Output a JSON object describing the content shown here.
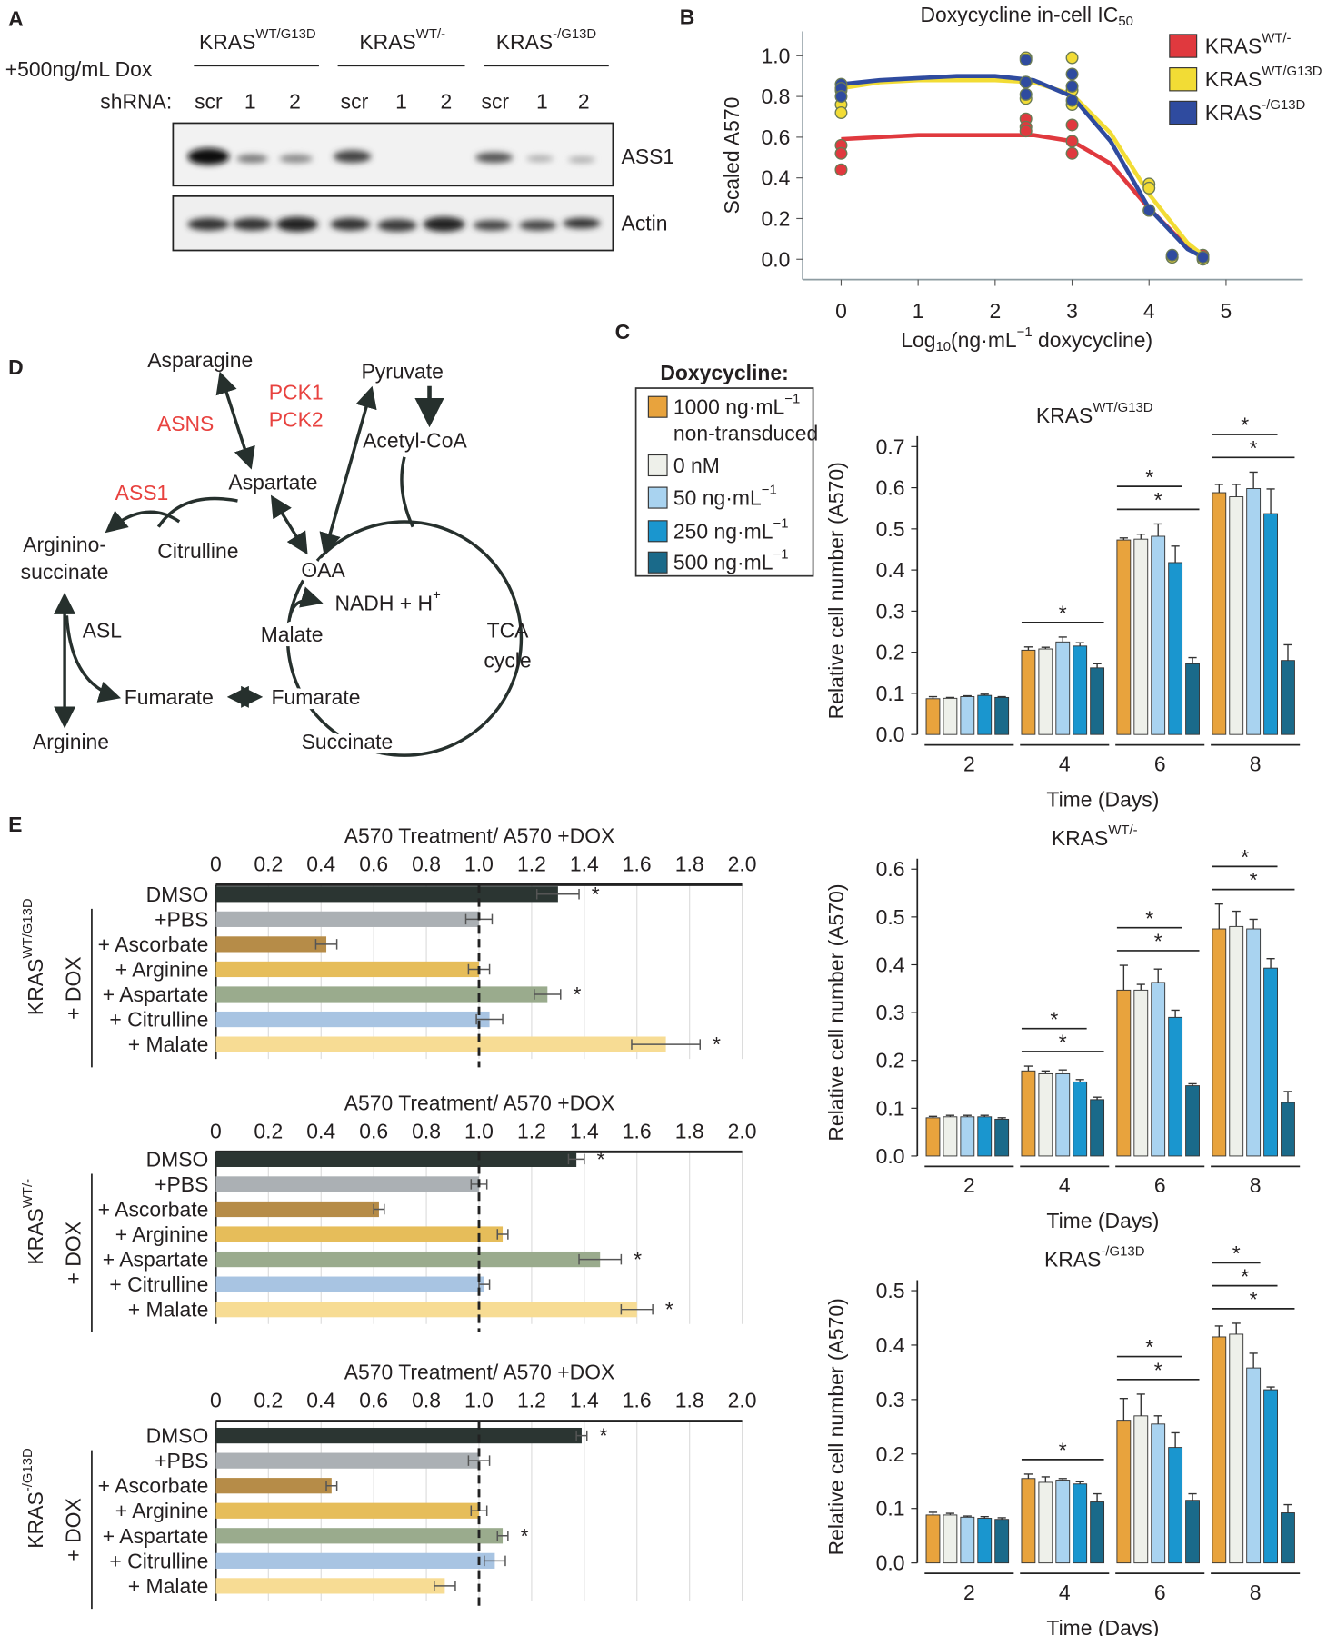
{
  "panel_labels": [
    "A",
    "B",
    "C",
    "D",
    "E"
  ],
  "blot": {
    "treatment": "+500ng/mL Dox",
    "shrna_label": "shRNA:",
    "groups": [
      {
        "name": [
          {
            "t": "KRAS"
          },
          {
            "t": "WT/G13D",
            "pos": "sup"
          }
        ],
        "lanes": [
          "scr",
          "1",
          "2"
        ]
      },
      {
        "name": [
          {
            "t": "KRAS"
          },
          {
            "t": "WT/-",
            "pos": "sup"
          }
        ],
        "lanes": [
          "scr",
          "1",
          "2"
        ]
      },
      {
        "name": [
          {
            "t": "KRAS"
          },
          {
            "t": "-/G13D",
            "pos": "sup"
          }
        ],
        "lanes": [
          "scr",
          "1",
          "2"
        ]
      }
    ],
    "rows": [
      "ASS1",
      "Actin"
    ]
  },
  "pathway": {
    "nodes": [
      {
        "label": "Asparagine"
      },
      {
        "label": "Pyruvate"
      },
      {
        "label": "PCK1",
        "color": "#e8423f"
      },
      {
        "label": "PCK2",
        "color": "#e8423f"
      },
      {
        "label": "ASNS",
        "color": "#e8423f"
      },
      {
        "label": "Acetyl-CoA"
      },
      {
        "label": "Aspartate"
      },
      {
        "label": "ASS1",
        "color": "#e8423f"
      },
      {
        "label": "Citrulline"
      },
      {
        "label": {
          "lines": [
            "Arginino-",
            "succinate"
          ]
        }
      },
      {
        "label": "OAA"
      },
      {
        "label": [
          {
            "t": "NADH + H"
          },
          {
            "t": "+",
            "pos": "sup"
          }
        ]
      },
      {
        "label": "Malate"
      },
      {
        "label": {
          "lines": [
            "TCA",
            "cycle"
          ]
        }
      },
      {
        "label": "ASL"
      },
      {
        "label": "Fumarate"
      },
      {
        "label": "Fumarate"
      },
      {
        "label": "Arginine"
      },
      {
        "label": "Succinate"
      }
    ]
  },
  "chart_data": [
    {
      "type": "scatter",
      "title": [
        {
          "t": "Doxycycline in-cell IC"
        },
        {
          "t": "50",
          "pos": "sub"
        }
      ],
      "xlabel": [
        {
          "t": "Log"
        },
        {
          "t": "10",
          "pos": "sub"
        },
        {
          "t": "(ng·mL"
        },
        {
          "t": "−1",
          "pos": "sup"
        },
        {
          "t": " doxycycline)"
        }
      ],
      "ylabel": "Scaled A570",
      "xlim": [
        -0.5,
        6
      ],
      "ylim": [
        -0.1,
        1.12
      ],
      "xticks": [
        0,
        1,
        2,
        3,
        4,
        5
      ],
      "yticks": [
        {
          "value": 0,
          "label": "0.0"
        },
        0.2,
        0.4,
        0.6,
        0.8,
        {
          "value": 1,
          "label": "1.0"
        }
      ],
      "legend": "upper right",
      "curve_x": [
        0,
        0.5,
        1,
        1.5,
        2,
        2.5,
        3,
        3.5,
        4,
        4.5,
        4.7
      ],
      "series": [
        {
          "name": [
            {
              "t": "KRAS"
            },
            {
              "t": "WT/-",
              "pos": "sup"
            }
          ],
          "color": "#e0393e",
          "x": [
            0,
            0,
            0,
            2.4,
            2.4,
            2.4,
            3,
            3,
            3,
            4,
            4.3,
            4.7
          ],
          "values": [
            0.56,
            0.52,
            0.44,
            0.69,
            0.65,
            0.63,
            0.66,
            0.58,
            0.52,
            0.24,
            0.01,
            0.02
          ],
          "curve_values": [
            0.59,
            0.6,
            0.61,
            0.61,
            0.61,
            0.61,
            0.58,
            0.47,
            0.25,
            0.06,
            0.02
          ]
        },
        {
          "name": [
            {
              "t": "KRAS"
            },
            {
              "t": "WT/G13D",
              "pos": "sup"
            }
          ],
          "color": "#f2dc35",
          "x": [
            0,
            0,
            0,
            2.4,
            2.4,
            2.4,
            3,
            3,
            3,
            4,
            4,
            4.3,
            4.7
          ],
          "values": [
            0.83,
            0.76,
            0.72,
            0.99,
            0.87,
            0.79,
            0.99,
            0.83,
            0.76,
            0.37,
            0.35,
            0.01,
            0.0
          ],
          "curve_values": [
            0.84,
            0.87,
            0.88,
            0.88,
            0.88,
            0.87,
            0.81,
            0.62,
            0.32,
            0.08,
            0.02
          ]
        },
        {
          "name": [
            {
              "t": "KRAS"
            },
            {
              "t": "-/G13D",
              "pos": "sup"
            }
          ],
          "color": "#2f4b9f",
          "x": [
            0,
            0,
            0,
            2.4,
            2.4,
            2.4,
            3,
            3,
            3,
            4,
            4.3,
            4.7
          ],
          "values": [
            0.86,
            0.84,
            0.8,
            0.98,
            0.87,
            0.81,
            0.91,
            0.85,
            0.78,
            0.24,
            0.02,
            0.01
          ],
          "curve_values": [
            0.86,
            0.88,
            0.89,
            0.9,
            0.9,
            0.88,
            0.8,
            0.58,
            0.25,
            0.05,
            0.01
          ]
        }
      ]
    },
    {
      "type": "bar",
      "title": [
        {
          "t": "KRAS"
        },
        {
          "t": "WT/G13D",
          "pos": "sup"
        }
      ],
      "xlabel": "Time (Days)",
      "ylabel": "Relative cell number (A570)",
      "legend_title": "Doxycycline:",
      "categories": [
        "2",
        "4",
        "6",
        "8"
      ],
      "ylim": [
        0,
        0.7
      ],
      "yticks": [
        {
          "value": 0,
          "label": "0.0"
        },
        0.1,
        0.2,
        0.3,
        0.4,
        0.5,
        0.6,
        0.7
      ],
      "series": [
        {
          "name": {
            "lines": [
              [
                {
                  "t": "1000 ng·mL"
                },
                {
                  "t": "−1",
                  "pos": "sup"
                }
              ],
              "non-transduced"
            ]
          },
          "color": "#e8a33d",
          "values": [
            0.087,
            0.205,
            0.473,
            0.588
          ],
          "errors": [
            0.005,
            0.008,
            0.005,
            0.02
          ]
        },
        {
          "name": "0 nM",
          "color": "#eef0ea",
          "values": [
            0.088,
            0.208,
            0.475,
            0.578
          ],
          "errors": [
            0.002,
            0.004,
            0.012,
            0.03
          ]
        },
        {
          "name": [
            {
              "t": "50 ng·mL"
            },
            {
              "t": "−1",
              "pos": "sup"
            }
          ],
          "color": "#a9d3f0",
          "values": [
            0.092,
            0.225,
            0.482,
            0.598
          ],
          "errors": [
            0.002,
            0.012,
            0.03,
            0.04
          ]
        },
        {
          "name": [
            {
              "t": "250 ng·mL"
            },
            {
              "t": "−1",
              "pos": "sup"
            }
          ],
          "color": "#1a96cf",
          "values": [
            0.095,
            0.215,
            0.418,
            0.537
          ],
          "errors": [
            0.003,
            0.008,
            0.04,
            0.06
          ]
        },
        {
          "name": [
            {
              "t": "500 ng·mL"
            },
            {
              "t": "−1",
              "pos": "sup"
            }
          ],
          "color": "#1a6a8a",
          "values": [
            0.09,
            0.162,
            0.172,
            0.18
          ],
          "errors": [
            0.002,
            0.01,
            0.015,
            0.038
          ]
        }
      ],
      "brackets": [
        {
          "category": 1,
          "from": 0,
          "to": 4,
          "label": "*"
        },
        {
          "category": 2,
          "from": 0,
          "to": 3,
          "label": "*"
        },
        {
          "category": 2,
          "from": 0,
          "to": 4,
          "label": "*"
        },
        {
          "category": 3,
          "from": 0,
          "to": 3,
          "label": "*"
        },
        {
          "category": 3,
          "from": 0,
          "to": 4,
          "label": "*"
        }
      ]
    },
    {
      "type": "bar",
      "title": [
        {
          "t": "KRAS"
        },
        {
          "t": "WT/-",
          "pos": "sup"
        }
      ],
      "xlabel": "Time (Days)",
      "ylabel": "Relative cell number (A570)",
      "categories": [
        "2",
        "4",
        "6",
        "8"
      ],
      "ylim": [
        0,
        0.6
      ],
      "yticks": [
        {
          "value": 0,
          "label": "0.0"
        },
        0.1,
        0.2,
        0.3,
        0.4,
        0.5,
        0.6
      ],
      "series": [
        {
          "color": "#e8a33d",
          "values": [
            0.08,
            0.178,
            0.347,
            0.475
          ],
          "errors": [
            0.003,
            0.01,
            0.052,
            0.052
          ]
        },
        {
          "color": "#eef0ea",
          "values": [
            0.082,
            0.172,
            0.347,
            0.48
          ],
          "errors": [
            0.003,
            0.006,
            0.012,
            0.032
          ]
        },
        {
          "color": "#a9d3f0",
          "values": [
            0.082,
            0.172,
            0.363,
            0.475
          ],
          "errors": [
            0.003,
            0.008,
            0.028,
            0.02
          ]
        },
        {
          "color": "#1a96cf",
          "values": [
            0.082,
            0.155,
            0.29,
            0.393
          ],
          "errors": [
            0.003,
            0.005,
            0.015,
            0.02
          ]
        },
        {
          "color": "#1a6a8a",
          "values": [
            0.077,
            0.118,
            0.147,
            0.112
          ],
          "errors": [
            0.003,
            0.005,
            0.004,
            0.023
          ]
        }
      ],
      "brackets": [
        {
          "category": 1,
          "from": 0,
          "to": 3,
          "label": "*"
        },
        {
          "category": 1,
          "from": 0,
          "to": 4,
          "label": "*"
        },
        {
          "category": 2,
          "from": 0,
          "to": 3,
          "label": "*"
        },
        {
          "category": 2,
          "from": 0,
          "to": 4,
          "label": "*"
        },
        {
          "category": 3,
          "from": 0,
          "to": 3,
          "label": "*"
        },
        {
          "category": 3,
          "from": 0,
          "to": 4,
          "label": "*"
        }
      ]
    },
    {
      "type": "bar",
      "title": [
        {
          "t": "KRAS"
        },
        {
          "t": "-/G13D",
          "pos": "sup"
        }
      ],
      "xlabel": "Time (Days)",
      "ylabel": "Relative cell number (A570)",
      "categories": [
        "2",
        "4",
        "6",
        "8"
      ],
      "ylim": [
        0,
        0.5
      ],
      "yticks": [
        {
          "value": 0,
          "label": "0.0"
        },
        0.1,
        0.2,
        0.3,
        0.4,
        0.5
      ],
      "series": [
        {
          "color": "#e8a33d",
          "values": [
            0.088,
            0.155,
            0.262,
            0.415
          ],
          "errors": [
            0.005,
            0.008,
            0.04,
            0.02
          ]
        },
        {
          "color": "#eef0ea",
          "values": [
            0.088,
            0.148,
            0.27,
            0.42
          ],
          "errors": [
            0.003,
            0.01,
            0.04,
            0.02
          ]
        },
        {
          "color": "#a9d3f0",
          "values": [
            0.084,
            0.152,
            0.255,
            0.358
          ],
          "errors": [
            0.002,
            0.003,
            0.015,
            0.027
          ]
        },
        {
          "color": "#1a96cf",
          "values": [
            0.082,
            0.145,
            0.212,
            0.318
          ],
          "errors": [
            0.003,
            0.004,
            0.027,
            0.005
          ]
        },
        {
          "color": "#1a6a8a",
          "values": [
            0.08,
            0.112,
            0.115,
            0.092
          ],
          "errors": [
            0.003,
            0.015,
            0.012,
            0.015
          ]
        }
      ],
      "brackets": [
        {
          "category": 1,
          "from": 0,
          "to": 4,
          "label": "*"
        },
        {
          "category": 2,
          "from": 0,
          "to": 3,
          "label": "*"
        },
        {
          "category": 2,
          "from": 0,
          "to": 4,
          "label": "*"
        },
        {
          "category": 3,
          "from": 0,
          "to": 2,
          "label": "*"
        },
        {
          "category": 3,
          "from": 0,
          "to": 3,
          "label": "*"
        },
        {
          "category": 3,
          "from": 0,
          "to": 4,
          "label": "*"
        }
      ]
    },
    {
      "type": "hbar",
      "title": "A570 Treatment/ A570 +DOX",
      "row_label": [
        {
          "t": "KRAS"
        },
        {
          "t": "WT/G13D",
          "pos": "sup"
        }
      ],
      "group_label": "+ DOX",
      "group_range": [
        1,
        6
      ],
      "categories": [
        "DMSO",
        "+PBS",
        "+ Ascorbate",
        "+ Arginine",
        "+ Aspartate",
        "+ Citrulline",
        "+ Malate"
      ],
      "colors": [
        "#2b3532",
        "#abb0b4",
        "#b68c48",
        "#e6bd5a",
        "#9aab8d",
        "#a8c4e2",
        "#f7dc94"
      ],
      "values": [
        1.3,
        1.0,
        0.42,
        1.0,
        1.26,
        1.04,
        1.71
      ],
      "errors": [
        0.08,
        0.05,
        0.04,
        0.04,
        0.05,
        0.05,
        0.13
      ],
      "xlim": [
        0,
        2
      ],
      "xticks": [
        0,
        0.2,
        0.4,
        0.6,
        0.8,
        {
          "value": 1,
          "label": "1.0"
        },
        1.2,
        1.4,
        1.6,
        1.8,
        {
          "value": 2,
          "label": "2.0"
        }
      ],
      "reference_line": 1,
      "marks": [
        {
          "index": 0,
          "label": "*"
        },
        {
          "index": 4,
          "label": "*"
        },
        {
          "index": 6,
          "label": "*"
        }
      ]
    },
    {
      "type": "hbar",
      "title": "A570 Treatment/ A570 +DOX",
      "row_label": [
        {
          "t": "KRAS"
        },
        {
          "t": "WT/-",
          "pos": "sup"
        }
      ],
      "group_label": "+ DOX",
      "group_range": [
        1,
        6
      ],
      "categories": [
        "DMSO",
        "+PBS",
        "+ Ascorbate",
        "+ Arginine",
        "+ Aspartate",
        "+ Citrulline",
        "+ Malate"
      ],
      "colors": [
        "#2b3532",
        "#abb0b4",
        "#b68c48",
        "#e6bd5a",
        "#9aab8d",
        "#a8c4e2",
        "#f7dc94"
      ],
      "values": [
        1.37,
        1.0,
        0.62,
        1.09,
        1.46,
        1.02,
        1.6
      ],
      "errors": [
        0.03,
        0.03,
        0.02,
        0.02,
        0.08,
        0.02,
        0.06
      ],
      "xlim": [
        0,
        2
      ],
      "xticks": [
        0,
        0.2,
        0.4,
        0.6,
        0.8,
        {
          "value": 1,
          "label": "1.0"
        },
        1.2,
        1.4,
        1.6,
        1.8,
        {
          "value": 2,
          "label": "2.0"
        }
      ],
      "reference_line": 1,
      "marks": [
        {
          "index": 0,
          "label": "*"
        },
        {
          "index": 4,
          "label": "*"
        },
        {
          "index": 6,
          "label": "*"
        }
      ]
    },
    {
      "type": "hbar",
      "title": "A570 Treatment/ A570 +DOX",
      "row_label": [
        {
          "t": "KRAS"
        },
        {
          "t": "-/G13D",
          "pos": "sup"
        }
      ],
      "group_label": "+ DOX",
      "group_range": [
        1,
        6
      ],
      "categories": [
        "DMSO",
        "+PBS",
        "+ Ascorbate",
        "+ Arginine",
        "+ Aspartate",
        "+ Citrulline",
        "+ Malate"
      ],
      "colors": [
        "#2b3532",
        "#abb0b4",
        "#b68c48",
        "#e6bd5a",
        "#9aab8d",
        "#a8c4e2",
        "#f7dc94"
      ],
      "values": [
        1.39,
        1.0,
        0.44,
        1.0,
        1.09,
        1.06,
        0.87
      ],
      "errors": [
        0.02,
        0.04,
        0.02,
        0.03,
        0.02,
        0.04,
        0.04
      ],
      "xlim": [
        0,
        2
      ],
      "xticks": [
        0,
        0.2,
        0.4,
        0.6,
        0.8,
        {
          "value": 1,
          "label": "1.0"
        },
        1.2,
        1.4,
        1.6,
        1.8,
        {
          "value": 2,
          "label": "2.0"
        }
      ],
      "reference_line": 1,
      "marks": [
        {
          "index": 0,
          "label": "*"
        },
        {
          "index": 4,
          "label": "*"
        }
      ]
    }
  ]
}
